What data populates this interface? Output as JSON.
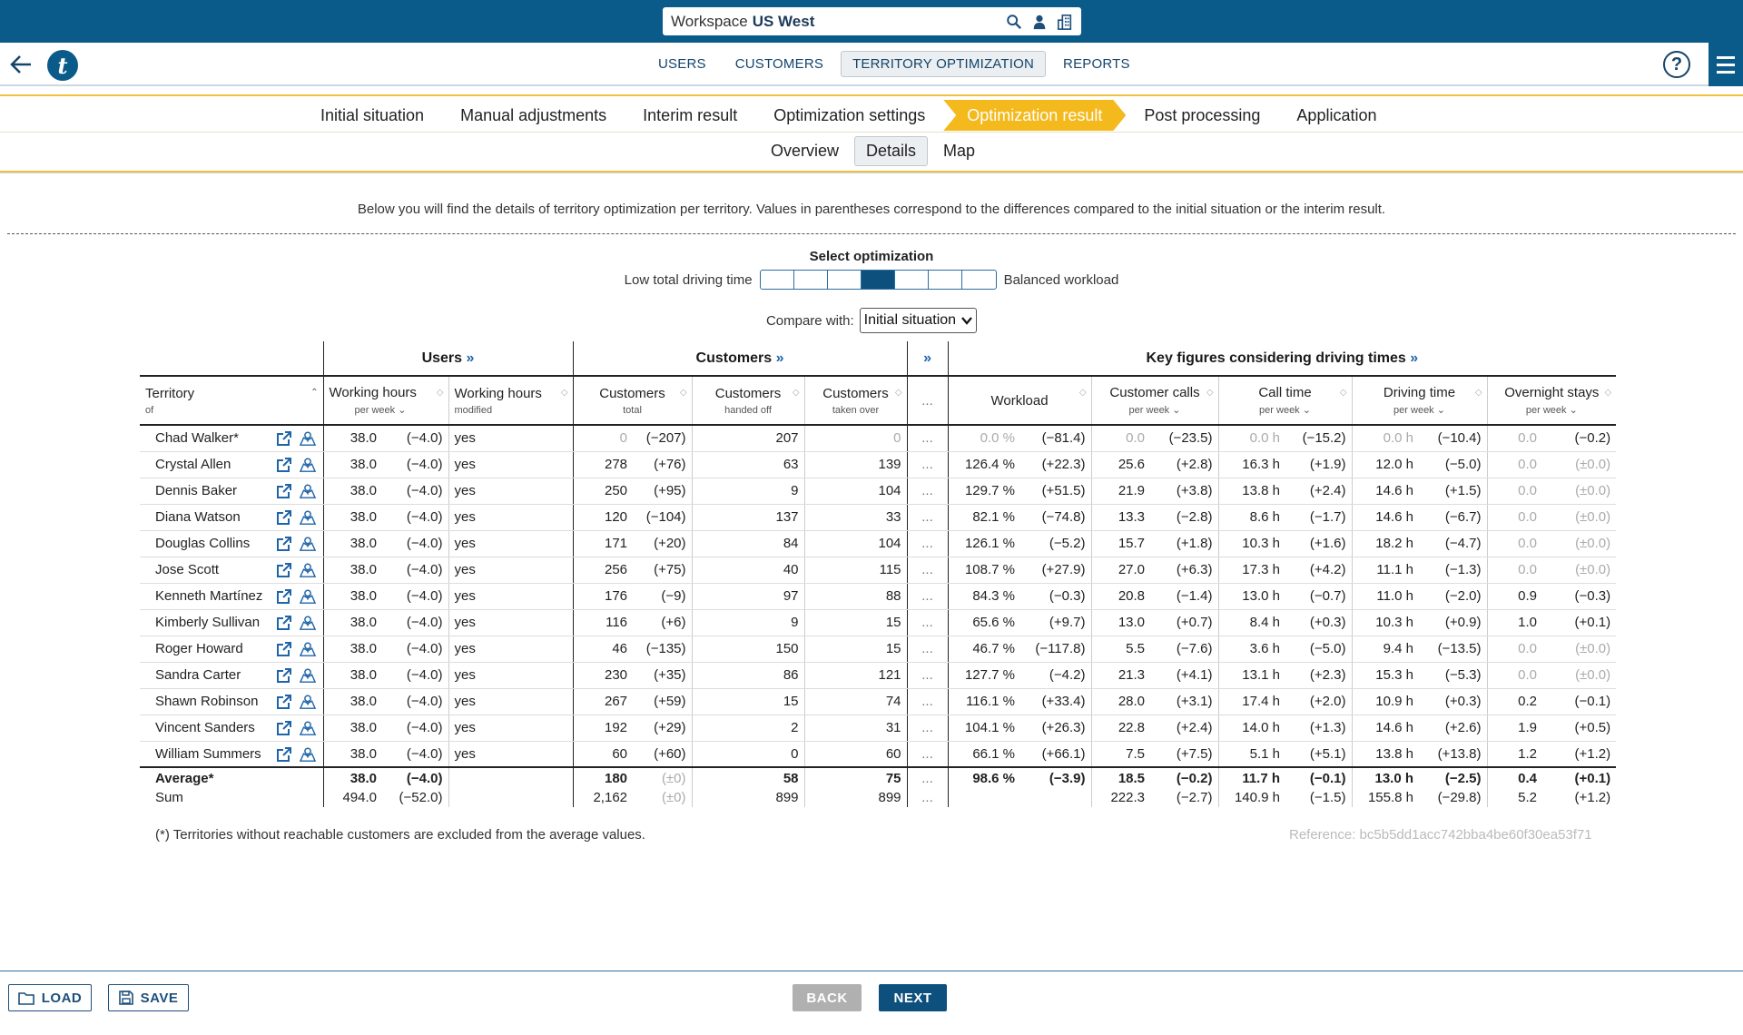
{
  "workspace": {
    "name": "Workspace",
    "region": "US West"
  },
  "nav": {
    "tabs": [
      "USERS",
      "CUSTOMERS",
      "TERRITORY OPTIMIZATION",
      "REPORTS"
    ],
    "active": 2
  },
  "help_label": "?",
  "steps": [
    "Initial situation",
    "Manual adjustments",
    "Interim result",
    "Optimization settings",
    "Optimization result",
    "Post processing",
    "Application"
  ],
  "subtabs": [
    "Overview",
    "Details",
    "Map"
  ],
  "description": "Below you will find the details of territory optimization per territory. Values in parentheses correspond to the differences compared to the initial situation or the interim result.",
  "select_optimization": {
    "title": "Select optimization",
    "left_label": "Low total driving time",
    "right_label": "Balanced workload",
    "segments": 7,
    "selected": 4
  },
  "compare": {
    "label": "Compare with:",
    "value": "Initial situation"
  },
  "groups": {
    "users": "Users",
    "customers": "Customers",
    "key_figures": "Key figures considering driving times",
    "chevron": "»"
  },
  "columns": {
    "territory": {
      "title": "Territory",
      "sub": "of"
    },
    "wh": {
      "title": "Working hours",
      "sub": "per week"
    },
    "whm": {
      "title": "Working hours",
      "sub": "modified"
    },
    "cust_total": {
      "title": "Customers",
      "sub": "total"
    },
    "cust_handed": {
      "title": "Customers",
      "sub": "handed off"
    },
    "cust_taken": {
      "title": "Customers",
      "sub": "taken over"
    },
    "dots": "...",
    "workload": {
      "title": "Workload",
      "sub": ""
    },
    "calls": {
      "title": "Customer calls",
      "sub": "per week"
    },
    "calltime": {
      "title": "Call time",
      "sub": "per week"
    },
    "drive": {
      "title": "Driving time",
      "sub": "per week"
    },
    "overnight": {
      "title": "Overnight stays",
      "sub": "per week"
    }
  },
  "rows": [
    {
      "name": "Chad Walker*",
      "wh": "38.0",
      "whd": "(−4.0)",
      "whm": "yes",
      "ct": "0",
      "ctd": "(−207)",
      "ch": "207",
      "co": "0",
      "dots": "...",
      "wl": "0.0 %",
      "wld": "(−81.4)",
      "cc": "0.0",
      "ccd": "(−23.5)",
      "cl": "0.0 h",
      "cld": "(−15.2)",
      "dr": "0.0 h",
      "drd": "(−10.4)",
      "os": "0.0",
      "osd": "(−0.2)"
    },
    {
      "name": "Crystal Allen",
      "wh": "38.0",
      "whd": "(−4.0)",
      "whm": "yes",
      "ct": "278",
      "ctd": "(+76)",
      "ch": "63",
      "co": "139",
      "dots": "...",
      "wl": "126.4 %",
      "wld": "(+22.3)",
      "cc": "25.6",
      "ccd": "(+2.8)",
      "cl": "16.3 h",
      "cld": "(+1.9)",
      "dr": "12.0 h",
      "drd": "(−5.0)",
      "os": "0.0",
      "osd": "(±0.0)"
    },
    {
      "name": "Dennis Baker",
      "wh": "38.0",
      "whd": "(−4.0)",
      "whm": "yes",
      "ct": "250",
      "ctd": "(+95)",
      "ch": "9",
      "co": "104",
      "dots": "...",
      "wl": "129.7 %",
      "wld": "(+51.5)",
      "cc": "21.9",
      "ccd": "(+3.8)",
      "cl": "13.8 h",
      "cld": "(+2.4)",
      "dr": "14.6 h",
      "drd": "(+1.5)",
      "os": "0.0",
      "osd": "(±0.0)"
    },
    {
      "name": "Diana Watson",
      "wh": "38.0",
      "whd": "(−4.0)",
      "whm": "yes",
      "ct": "120",
      "ctd": "(−104)",
      "ch": "137",
      "co": "33",
      "dots": "...",
      "wl": "82.1 %",
      "wld": "(−74.8)",
      "cc": "13.3",
      "ccd": "(−2.8)",
      "cl": "8.6 h",
      "cld": "(−1.7)",
      "dr": "14.6 h",
      "drd": "(−6.7)",
      "os": "0.0",
      "osd": "(±0.0)"
    },
    {
      "name": "Douglas Collins",
      "wh": "38.0",
      "whd": "(−4.0)",
      "whm": "yes",
      "ct": "171",
      "ctd": "(+20)",
      "ch": "84",
      "co": "104",
      "dots": "...",
      "wl": "126.1 %",
      "wld": "(−5.2)",
      "cc": "15.7",
      "ccd": "(+1.8)",
      "cl": "10.3 h",
      "cld": "(+1.6)",
      "dr": "18.2 h",
      "drd": "(−4.7)",
      "os": "0.0",
      "osd": "(±0.0)"
    },
    {
      "name": "Jose Scott",
      "wh": "38.0",
      "whd": "(−4.0)",
      "whm": "yes",
      "ct": "256",
      "ctd": "(+75)",
      "ch": "40",
      "co": "115",
      "dots": "...",
      "wl": "108.7 %",
      "wld": "(+27.9)",
      "cc": "27.0",
      "ccd": "(+6.3)",
      "cl": "17.3 h",
      "cld": "(+4.2)",
      "dr": "11.1 h",
      "drd": "(−1.3)",
      "os": "0.0",
      "osd": "(±0.0)"
    },
    {
      "name": "Kenneth Martínez",
      "wh": "38.0",
      "whd": "(−4.0)",
      "whm": "yes",
      "ct": "176",
      "ctd": "(−9)",
      "ch": "97",
      "co": "88",
      "dots": "...",
      "wl": "84.3 %",
      "wld": "(−0.3)",
      "cc": "20.8",
      "ccd": "(−1.4)",
      "cl": "13.0 h",
      "cld": "(−0.7)",
      "dr": "11.0 h",
      "drd": "(−2.0)",
      "os": "0.9",
      "osd": "(−0.3)"
    },
    {
      "name": "Kimberly Sullivan",
      "wh": "38.0",
      "whd": "(−4.0)",
      "whm": "yes",
      "ct": "116",
      "ctd": "(+6)",
      "ch": "9",
      "co": "15",
      "dots": "...",
      "wl": "65.6 %",
      "wld": "(+9.7)",
      "cc": "13.0",
      "ccd": "(+0.7)",
      "cl": "8.4 h",
      "cld": "(+0.3)",
      "dr": "10.3 h",
      "drd": "(+0.9)",
      "os": "1.0",
      "osd": "(+0.1)"
    },
    {
      "name": "Roger Howard",
      "wh": "38.0",
      "whd": "(−4.0)",
      "whm": "yes",
      "ct": "46",
      "ctd": "(−135)",
      "ch": "150",
      "co": "15",
      "dots": "...",
      "wl": "46.7 %",
      "wld": "(−117.8)",
      "cc": "5.5",
      "ccd": "(−7.6)",
      "cl": "3.6 h",
      "cld": "(−5.0)",
      "dr": "9.4 h",
      "drd": "(−13.5)",
      "os": "0.0",
      "osd": "(±0.0)"
    },
    {
      "name": "Sandra Carter",
      "wh": "38.0",
      "whd": "(−4.0)",
      "whm": "yes",
      "ct": "230",
      "ctd": "(+35)",
      "ch": "86",
      "co": "121",
      "dots": "...",
      "wl": "127.7 %",
      "wld": "(−4.2)",
      "cc": "21.3",
      "ccd": "(+4.1)",
      "cl": "13.1 h",
      "cld": "(+2.3)",
      "dr": "15.3 h",
      "drd": "(−5.3)",
      "os": "0.0",
      "osd": "(±0.0)"
    },
    {
      "name": "Shawn Robinson",
      "wh": "38.0",
      "whd": "(−4.0)",
      "whm": "yes",
      "ct": "267",
      "ctd": "(+59)",
      "ch": "15",
      "co": "74",
      "dots": "...",
      "wl": "116.1 %",
      "wld": "(+33.4)",
      "cc": "28.0",
      "ccd": "(+3.1)",
      "cl": "17.4 h",
      "cld": "(+2.0)",
      "dr": "10.9 h",
      "drd": "(+0.3)",
      "os": "0.2",
      "osd": "(−0.1)"
    },
    {
      "name": "Vincent Sanders",
      "wh": "38.0",
      "whd": "(−4.0)",
      "whm": "yes",
      "ct": "192",
      "ctd": "(+29)",
      "ch": "2",
      "co": "31",
      "dots": "...",
      "wl": "104.1 %",
      "wld": "(+26.3)",
      "cc": "22.8",
      "ccd": "(+2.4)",
      "cl": "14.0 h",
      "cld": "(+1.3)",
      "dr": "14.6 h",
      "drd": "(+2.6)",
      "os": "1.9",
      "osd": "(+0.5)"
    },
    {
      "name": "William Summers",
      "wh": "38.0",
      "whd": "(−4.0)",
      "whm": "yes",
      "ct": "60",
      "ctd": "(+60)",
      "ch": "0",
      "co": "60",
      "dots": "...",
      "wl": "66.1 %",
      "wld": "(+66.1)",
      "cc": "7.5",
      "ccd": "(+7.5)",
      "cl": "5.1 h",
      "cld": "(+5.1)",
      "dr": "13.8 h",
      "drd": "(+13.8)",
      "os": "1.2",
      "osd": "(+1.2)"
    }
  ],
  "average": {
    "label": "Average*",
    "wh": "38.0",
    "whd": "(−4.0)",
    "ct": "180",
    "ctd": "(±0)",
    "ch": "58",
    "co": "75",
    "dots": "...",
    "wl": "98.6 %",
    "wld": "(−3.9)",
    "cc": "18.5",
    "ccd": "(−0.2)",
    "cl": "11.7 h",
    "cld": "(−0.1)",
    "dr": "13.0 h",
    "drd": "(−2.5)",
    "os": "0.4",
    "osd": "(+0.1)"
  },
  "sum": {
    "label": "Sum",
    "wh": "494.0",
    "whd": "(−52.0)",
    "ct": "2,162",
    "ctd": "(±0)",
    "ch": "899",
    "co": "899",
    "dots": "...",
    "cc": "222.3",
    "ccd": "(−2.7)",
    "cl": "140.9 h",
    "cld": "(−1.5)",
    "dr": "155.8 h",
    "drd": "(−29.8)",
    "os": "5.2",
    "osd": "(+1.2)"
  },
  "footnote": "(*) Territories without reachable customers are excluded from the average values.",
  "reference": "Reference: bc5b5dd1acc742bba4be60f30ea53f71",
  "buttons": {
    "load": "LOAD",
    "save": "SAVE",
    "back": "BACK",
    "next": "NEXT"
  },
  "colors": {
    "primary": "#0b5b8a",
    "accent": "#f4b91d",
    "dim": "#aaaaaa"
  }
}
